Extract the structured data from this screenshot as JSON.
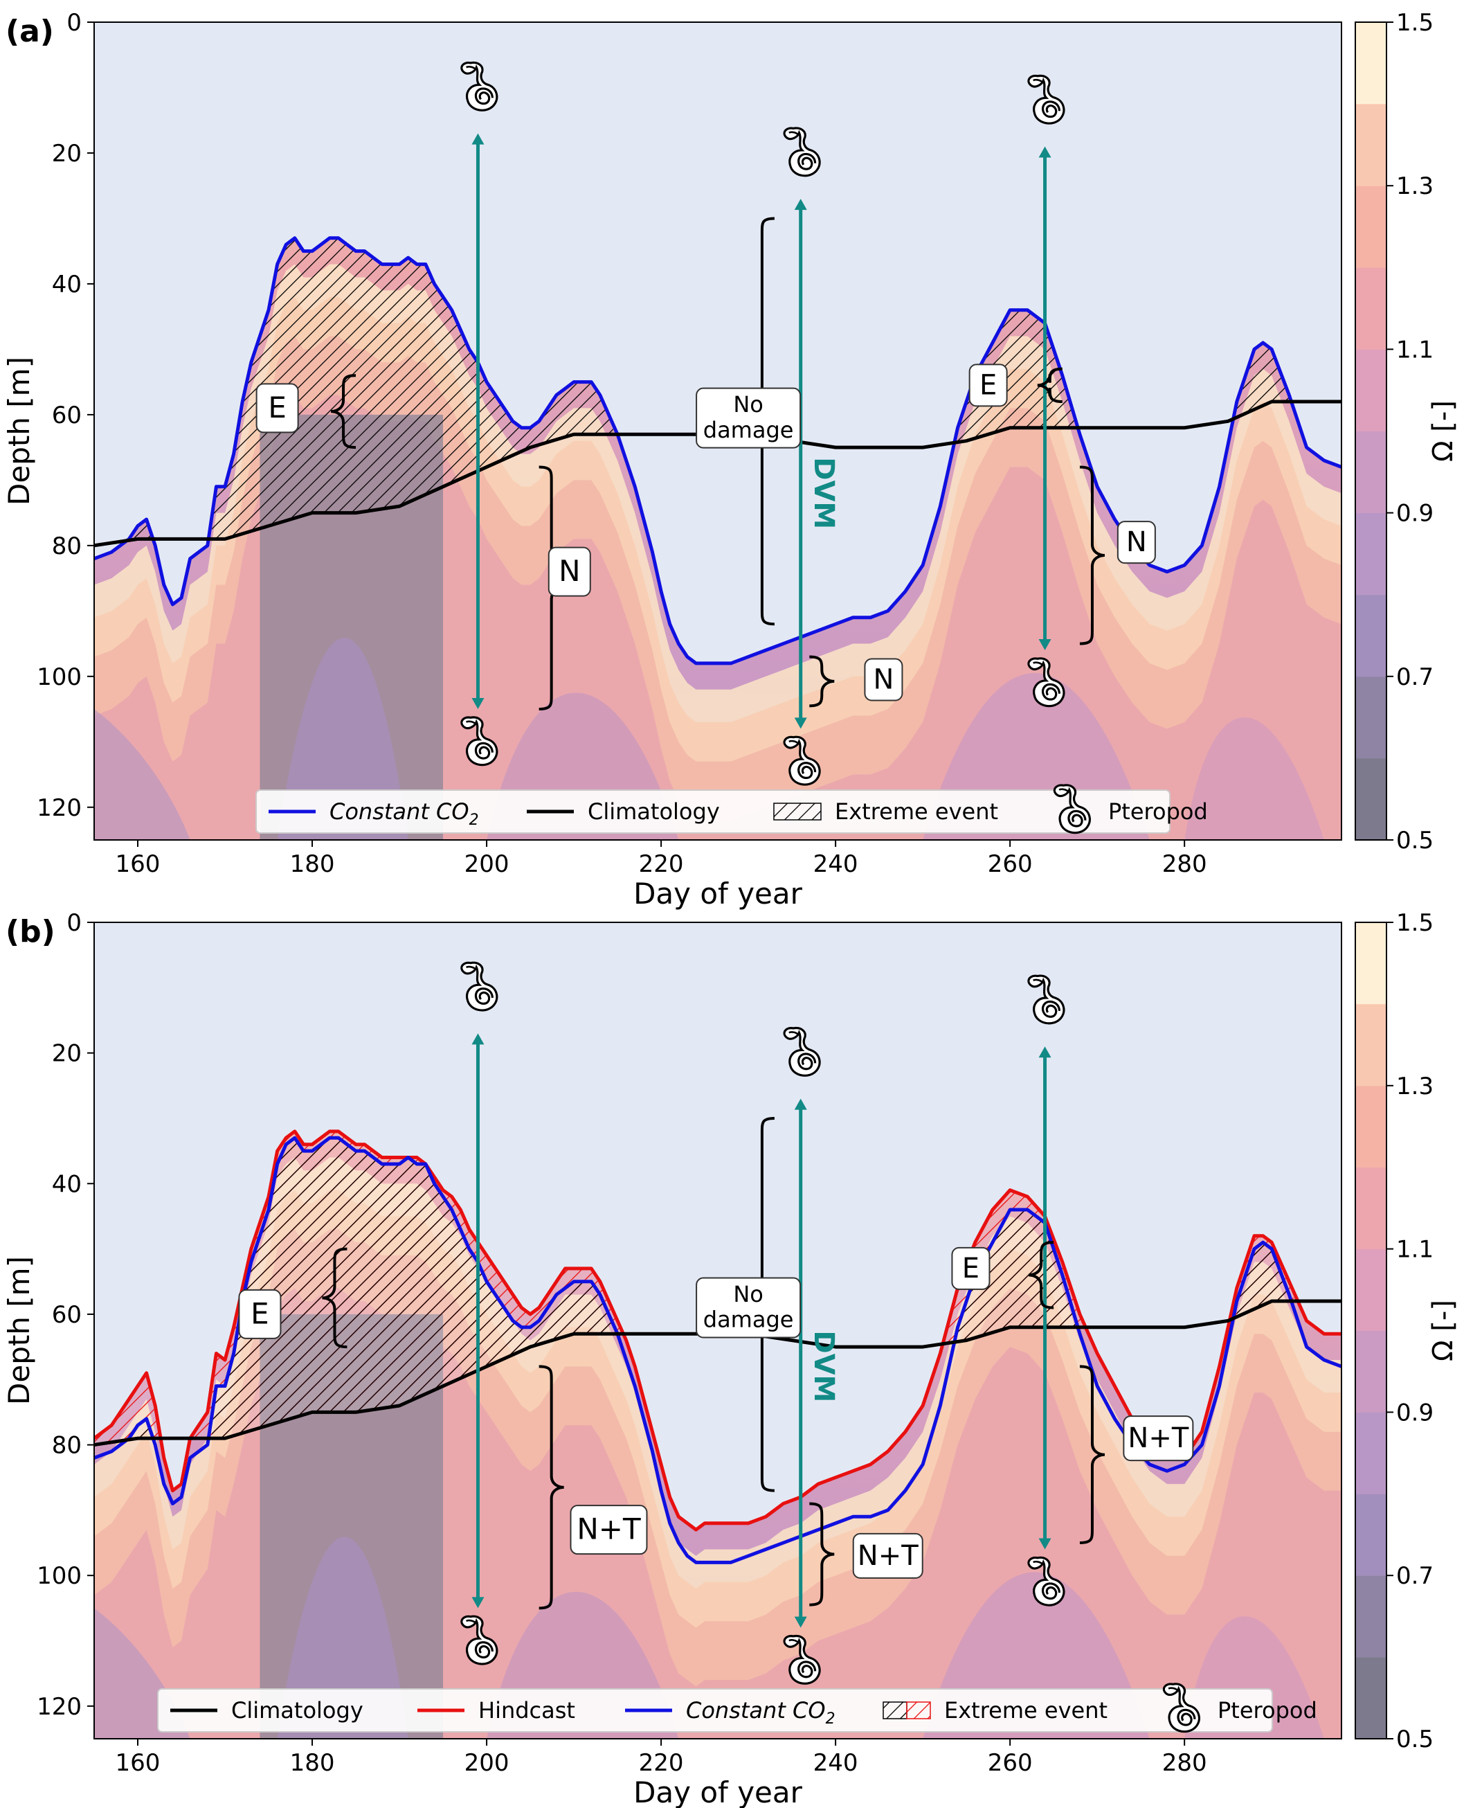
{
  "chart_data": [
    {
      "panel_label": "(a)",
      "type": "area",
      "xlabel": "Day of year",
      "ylabel": "Depth [m]",
      "xlim": [
        155,
        298
      ],
      "ylim": [
        125,
        0
      ],
      "xticks": [
        160,
        180,
        200,
        220,
        240,
        260,
        280
      ],
      "yticks": [
        0,
        20,
        40,
        60,
        80,
        100,
        120
      ],
      "colorbar": {
        "label": "Ω [-]",
        "ticks": [
          0.5,
          0.7,
          0.9,
          1.1,
          1.3,
          1.5
        ],
        "range": [
          0.5,
          1.5
        ]
      },
      "legend": {
        "position": "bottom-center",
        "entries": [
          {
            "label": "Constant CO",
            "sub": "2",
            "kind": "line",
            "color": "#1010e0"
          },
          {
            "label": "Climatology",
            "kind": "line",
            "color": "#000000"
          },
          {
            "label": "Extreme event",
            "kind": "hatch",
            "color": "#000000"
          },
          {
            "label": "Pteropod",
            "kind": "icon"
          }
        ]
      },
      "series": [
        {
          "name": "Constant CO2",
          "color": "#1010e0",
          "x": [
            155,
            157,
            159,
            160,
            161,
            162,
            163,
            164,
            165,
            166,
            167,
            168,
            169,
            170,
            171,
            172,
            173,
            174,
            175,
            176,
            177,
            178,
            179,
            180,
            181,
            182,
            183,
            184,
            185,
            186,
            187,
            188,
            189,
            190,
            191,
            192,
            193,
            194,
            195,
            196,
            197,
            198,
            199,
            200,
            201,
            202,
            203,
            204,
            205,
            206,
            207,
            208,
            209,
            210,
            211,
            212,
            213,
            214,
            215,
            216,
            217,
            218,
            219,
            220,
            221,
            222,
            223,
            224,
            225,
            226,
            228,
            230,
            232,
            234,
            236,
            238,
            240,
            242,
            244,
            246,
            248,
            250,
            252,
            254,
            256,
            258,
            260,
            262,
            264,
            266,
            268,
            270,
            272,
            274,
            276,
            278,
            280,
            282,
            284,
            286,
            288,
            289,
            290,
            292,
            294,
            296,
            298
          ],
          "y": [
            82,
            81,
            79,
            77,
            76,
            80,
            86,
            89,
            88,
            82,
            81,
            80,
            71,
            71,
            66,
            58,
            52,
            48,
            44,
            37,
            34,
            33,
            35,
            35,
            34,
            33,
            33,
            34,
            35,
            35,
            36,
            37,
            37,
            37,
            36,
            37,
            37,
            40,
            42,
            44,
            47,
            50,
            52,
            55,
            57,
            59,
            61,
            62,
            62,
            61,
            59,
            57,
            56,
            55,
            55,
            55,
            57,
            60,
            63,
            67,
            71,
            76,
            81,
            87,
            92,
            95,
            97,
            98,
            98,
            98,
            98,
            97,
            96,
            95,
            94,
            93,
            92,
            91,
            91,
            90,
            87,
            83,
            74,
            62,
            54,
            49,
            44,
            44,
            46,
            54,
            63,
            71,
            76,
            80,
            83,
            84,
            83,
            80,
            71,
            58,
            50,
            49,
            50,
            57,
            65,
            67,
            68
          ]
        },
        {
          "name": "Climatology",
          "color": "#000000",
          "x": [
            155,
            160,
            165,
            170,
            175,
            180,
            185,
            190,
            195,
            200,
            205,
            210,
            215,
            220,
            225,
            230,
            235,
            240,
            245,
            250,
            255,
            260,
            265,
            270,
            275,
            280,
            285,
            290,
            295,
            298
          ],
          "y": [
            80,
            79,
            79,
            79,
            77,
            75,
            75,
            74,
            71,
            68,
            65,
            63,
            63,
            63,
            63,
            63,
            64,
            65,
            65,
            65,
            64,
            62,
            62,
            62,
            62,
            62,
            61,
            58,
            58,
            58
          ]
        }
      ],
      "annotations": [
        {
          "text": "E"
        },
        {
          "text": "N"
        },
        {
          "text": "N"
        },
        {
          "text": "N"
        },
        {
          "text": "No damage"
        },
        {
          "text": "DVM"
        },
        {
          "text": "E"
        }
      ]
    },
    {
      "panel_label": "(b)",
      "type": "area",
      "xlabel": "Day of year",
      "ylabel": "Depth [m]",
      "xlim": [
        155,
        298
      ],
      "ylim": [
        125,
        0
      ],
      "xticks": [
        160,
        180,
        200,
        220,
        240,
        260,
        280
      ],
      "yticks": [
        0,
        20,
        40,
        60,
        80,
        100,
        120
      ],
      "colorbar": {
        "label": "Ω [-]",
        "ticks": [
          0.5,
          0.7,
          0.9,
          1.1,
          1.3,
          1.5
        ],
        "range": [
          0.5,
          1.5
        ]
      },
      "legend": {
        "position": "bottom-center",
        "entries": [
          {
            "label": "Climatology",
            "kind": "line",
            "color": "#000000"
          },
          {
            "label": "Hindcast",
            "kind": "line",
            "color": "#e81010"
          },
          {
            "label": "Constant CO",
            "sub": "2",
            "kind": "line",
            "color": "#1010e0"
          },
          {
            "label": "Extreme event",
            "kind": "hatch2",
            "color": "#000000"
          },
          {
            "label": "Pteropod",
            "kind": "icon"
          }
        ]
      },
      "series": [
        {
          "name": "Constant CO2",
          "color": "#1010e0",
          "x": [
            155,
            157,
            159,
            160,
            161,
            162,
            163,
            164,
            165,
            166,
            167,
            168,
            169,
            170,
            171,
            172,
            173,
            174,
            175,
            176,
            177,
            178,
            179,
            180,
            181,
            182,
            183,
            184,
            185,
            186,
            187,
            188,
            189,
            190,
            191,
            192,
            193,
            194,
            195,
            196,
            197,
            198,
            199,
            200,
            201,
            202,
            203,
            204,
            205,
            206,
            207,
            208,
            209,
            210,
            211,
            212,
            213,
            214,
            215,
            216,
            217,
            218,
            219,
            220,
            221,
            222,
            223,
            224,
            225,
            226,
            228,
            230,
            232,
            234,
            236,
            238,
            240,
            242,
            244,
            246,
            248,
            250,
            252,
            254,
            256,
            258,
            260,
            262,
            264,
            266,
            268,
            270,
            272,
            274,
            276,
            278,
            280,
            282,
            284,
            286,
            288,
            289,
            290,
            292,
            294,
            296,
            298
          ],
          "y": [
            82,
            81,
            79,
            77,
            76,
            80,
            86,
            89,
            88,
            82,
            81,
            80,
            71,
            71,
            66,
            58,
            52,
            48,
            44,
            37,
            34,
            33,
            35,
            35,
            34,
            33,
            33,
            34,
            35,
            35,
            36,
            37,
            37,
            37,
            36,
            37,
            37,
            40,
            42,
            44,
            47,
            50,
            52,
            55,
            57,
            59,
            61,
            62,
            62,
            61,
            59,
            57,
            56,
            55,
            55,
            55,
            57,
            60,
            63,
            67,
            71,
            76,
            81,
            87,
            92,
            95,
            97,
            98,
            98,
            98,
            98,
            97,
            96,
            95,
            94,
            93,
            92,
            91,
            91,
            90,
            87,
            83,
            74,
            62,
            54,
            49,
            44,
            44,
            46,
            54,
            63,
            71,
            76,
            80,
            83,
            84,
            83,
            80,
            71,
            58,
            50,
            49,
            50,
            57,
            65,
            67,
            68
          ]
        },
        {
          "name": "Hindcast",
          "color": "#e81010",
          "x": [
            155,
            157,
            159,
            160,
            161,
            162,
            163,
            164,
            165,
            166,
            167,
            168,
            169,
            170,
            171,
            172,
            173,
            174,
            175,
            176,
            177,
            178,
            179,
            180,
            181,
            182,
            183,
            184,
            185,
            186,
            187,
            188,
            189,
            190,
            191,
            192,
            193,
            194,
            195,
            196,
            197,
            198,
            199,
            200,
            201,
            202,
            203,
            204,
            205,
            206,
            207,
            208,
            209,
            210,
            211,
            212,
            213,
            214,
            215,
            216,
            217,
            218,
            219,
            220,
            221,
            222,
            223,
            224,
            225,
            226,
            228,
            230,
            232,
            234,
            236,
            238,
            240,
            242,
            244,
            246,
            248,
            250,
            252,
            254,
            256,
            258,
            260,
            262,
            264,
            266,
            268,
            270,
            272,
            274,
            276,
            278,
            280,
            282,
            284,
            286,
            288,
            289,
            290,
            292,
            294,
            296,
            298
          ],
          "y": [
            79,
            77,
            73,
            71,
            69,
            74,
            82,
            87,
            86,
            79,
            77,
            75,
            66,
            67,
            62,
            56,
            50,
            46,
            42,
            35,
            33,
            32,
            34,
            34,
            33,
            32,
            32,
            33,
            34,
            34,
            35,
            36,
            36,
            36,
            36,
            36,
            37,
            39,
            41,
            42,
            44,
            47,
            49,
            51,
            53,
            55,
            57,
            59,
            60,
            59,
            57,
            55,
            53,
            53,
            53,
            53,
            55,
            58,
            61,
            64,
            68,
            73,
            78,
            83,
            88,
            91,
            92,
            93,
            92,
            92,
            92,
            92,
            91,
            89,
            88,
            86,
            85,
            84,
            83,
            81,
            78,
            74,
            66,
            56,
            49,
            44,
            41,
            42,
            45,
            52,
            60,
            66,
            71,
            76,
            80,
            82,
            82,
            78,
            68,
            56,
            48,
            48,
            49,
            55,
            61,
            63,
            63
          ]
        },
        {
          "name": "Climatology",
          "color": "#000000",
          "x": [
            155,
            160,
            165,
            170,
            175,
            180,
            185,
            190,
            195,
            200,
            205,
            210,
            215,
            220,
            225,
            230,
            235,
            240,
            245,
            250,
            255,
            260,
            265,
            270,
            275,
            280,
            285,
            290,
            295,
            298
          ],
          "y": [
            80,
            79,
            79,
            79,
            77,
            75,
            75,
            74,
            71,
            68,
            65,
            63,
            63,
            63,
            63,
            63,
            64,
            65,
            65,
            65,
            64,
            62,
            62,
            62,
            62,
            62,
            61,
            58,
            58,
            58
          ]
        }
      ],
      "annotations": [
        {
          "text": "E"
        },
        {
          "text": "N+T"
        },
        {
          "text": "N+T"
        },
        {
          "text": "N+T"
        },
        {
          "text": "No damage"
        },
        {
          "text": "DVM"
        },
        {
          "text": "E"
        }
      ]
    }
  ]
}
